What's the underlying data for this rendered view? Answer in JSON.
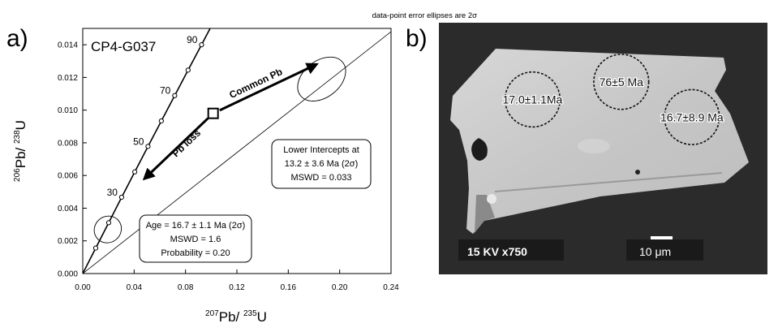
{
  "chart_data": {
    "type": "scatter",
    "panel_a": {
      "panel_label": "a)",
      "sample": "CP4-G037",
      "note": "data-point error ellipses are 2σ",
      "xlim": [
        0.0,
        0.24
      ],
      "ylim": [
        0.0,
        0.015
      ],
      "x_ticks": [
        "0.00",
        "0.04",
        "0.08",
        "0.12",
        "0.16",
        "0.20",
        "0.24"
      ],
      "y_ticks": [
        "0.000",
        "0.002",
        "0.004",
        "0.006",
        "0.008",
        "0.010",
        "0.012",
        "0.014"
      ],
      "xlabel_pre": "207",
      "xlabel_mid": "Pb/ ",
      "xlabel_sup": "235",
      "xlabel_post": "U",
      "ylabel_pre": "206",
      "ylabel_mid": "Pb/ ",
      "ylabel_sup": "238",
      "ylabel_post": "U",
      "concordia_points": [
        {
          "age": 10,
          "x": 0.0101,
          "y": 0.00156
        },
        {
          "age": 20,
          "x": 0.0202,
          "y": 0.00311
        },
        {
          "age": 30,
          "x": 0.0303,
          "y": 0.00467
        },
        {
          "age": 40,
          "x": 0.0405,
          "y": 0.00622
        },
        {
          "age": 50,
          "x": 0.0508,
          "y": 0.00778
        },
        {
          "age": 60,
          "x": 0.0612,
          "y": 0.00934
        },
        {
          "age": 70,
          "x": 0.0716,
          "y": 0.01089
        },
        {
          "age": 80,
          "x": 0.082,
          "y": 0.01245
        },
        {
          "age": 90,
          "x": 0.0925,
          "y": 0.014
        }
      ],
      "age_labels": [
        {
          "label": "30",
          "age": 30
        },
        {
          "label": "50",
          "age": 50
        },
        {
          "label": "70",
          "age": 70
        },
        {
          "label": "90",
          "age": 90
        }
      ],
      "discordia_line": {
        "x0": 0.0,
        "y0": 0.0,
        "x1": 0.24,
        "y1": 0.0148
      },
      "ellipses": [
        {
          "cx": 0.0195,
          "cy": 0.0027,
          "rx": 0.008,
          "ry": 0.0005
        },
        {
          "cx": 0.186,
          "cy": 0.0119,
          "rx": 0.0155,
          "ry": 0.0007
        }
      ],
      "square_marker": {
        "x": 0.1015,
        "y": 0.0098
      },
      "arrow_common": {
        "x1": 0.1015,
        "y1": 0.0098,
        "x2": 0.182,
        "y2": 0.0128,
        "label": "Common Pb"
      },
      "arrow_loss": {
        "x1": 0.1015,
        "y1": 0.0098,
        "x2": 0.048,
        "y2": 0.0058,
        "label": "Pb loss"
      },
      "box_intercept": {
        "line1": "Lower Intercepts at",
        "line2": "13.2  ± 3.6 Ma (2σ)",
        "line3": "MSWD = 0.033"
      },
      "box_age": {
        "line1": "Age = 16.7 ± 1.1 Ma (2σ)",
        "line2": "MSWD = 1.6",
        "line3": "Probability = 0.20"
      }
    },
    "panel_b": {
      "panel_label": "b)",
      "spots": [
        {
          "label": "17.0±1.1Ma",
          "cx": 0.285,
          "cy": 0.305,
          "r": 0.095
        },
        {
          "label": "76±5 Ma",
          "cx": 0.555,
          "cy": 0.235,
          "r": 0.095
        },
        {
          "label": "16.7±8.9 Ma",
          "cx": 0.77,
          "cy": 0.375,
          "r": 0.095
        }
      ],
      "footer_left": "15 KV  x750",
      "footer_right": "10 μm"
    }
  }
}
